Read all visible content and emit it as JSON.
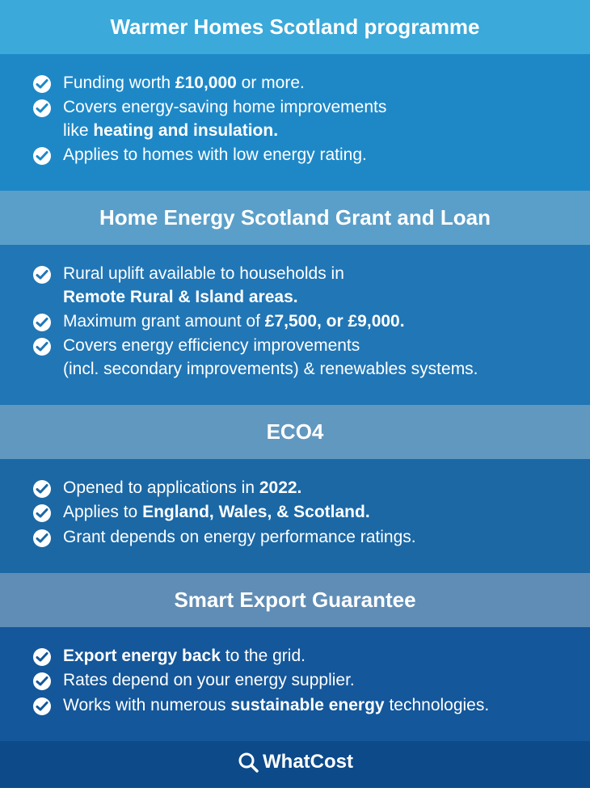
{
  "colors": {
    "header_backgrounds": [
      "#3ba9d9",
      "#5a9fc9",
      "#6198c0",
      "#5f8db5"
    ],
    "body_backgrounds": [
      "#1e88c7",
      "#2176b5",
      "#1b68a5",
      "#14579a"
    ],
    "text_color": "#ffffff",
    "check_circle": "#ffffff",
    "check_mark": "#1e88c7",
    "footer_bg": "#0d4a8a"
  },
  "typography": {
    "header_fontsize": 26,
    "body_fontsize": 21,
    "footer_fontsize": 24
  },
  "sections": [
    {
      "title": "Warmer Homes Scotland programme",
      "items": [
        "Funding worth <b>£10,000</b> or more.",
        "Covers energy-saving home improvements<br>like <b>heating and insulation.</b>",
        "Applies to homes with low energy rating."
      ]
    },
    {
      "title": "Home Energy Scotland Grant and Loan",
      "items": [
        "Rural uplift available to households in<br><b>Remote Rural & Island areas.</b>",
        "Maximum grant amount of <b>£7,500, or £9,000.</b>",
        "Covers energy efficiency improvements<br>(incl. secondary improvements) & renewables systems."
      ]
    },
    {
      "title": "ECO4",
      "items": [
        "Opened to applications in <b>2022.</b>",
        "Applies to <b>England, Wales, & Scotland.</b>",
        "Grant depends on energy performance ratings."
      ]
    },
    {
      "title": "Smart Export Guarantee",
      "items": [
        "<b>Export energy back</b> to the grid.",
        "Rates depend on your energy supplier.",
        "Works with numerous <b>sustainable energy</b> technologies."
      ]
    }
  ],
  "footer": {
    "brand": "WhatCost"
  }
}
